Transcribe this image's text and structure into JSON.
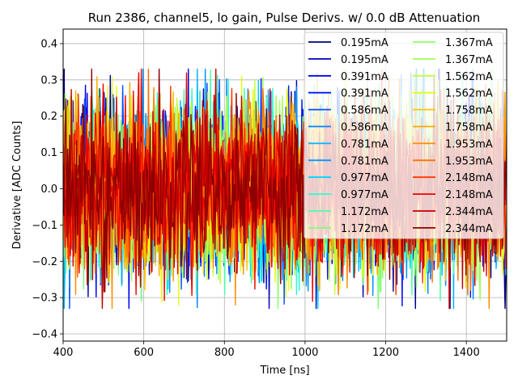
{
  "chart_data": {
    "type": "line",
    "title": "Run 2386, channel5, lo gain, Pulse Derivs. w/ 0.0 dB Attenuation",
    "xlabel": "Time [ns]",
    "ylabel": "Derivative [ADC Counts]",
    "xlim": [
      400,
      1500
    ],
    "ylim": [
      -0.42,
      0.44
    ],
    "xticks": [
      400,
      600,
      800,
      1000,
      1200,
      1400
    ],
    "xtick_labels": [
      "400",
      "600",
      "800",
      "1000",
      "1200",
      "1400"
    ],
    "yticks": [
      -0.4,
      -0.3,
      -0.2,
      -0.1,
      0.0,
      0.1,
      0.2,
      0.3,
      0.4
    ],
    "ytick_labels": [
      "−0.4",
      "−0.3",
      "−0.2",
      "−0.1",
      "0.0",
      "0.1",
      "0.2",
      "0.3",
      "0.4"
    ],
    "grid": true,
    "legend_position": "top-right",
    "legend_columns": 2,
    "noise_approximation": {
      "sample_step_ns": 2.2,
      "amplitude": 0.11,
      "max_abs": 0.33
    },
    "series": [
      {
        "name": "0.195mA",
        "color": "#00007f"
      },
      {
        "name": "0.195mA",
        "color": "#0000b2"
      },
      {
        "name": "0.391mA",
        "color": "#0000ed"
      },
      {
        "name": "0.391mA",
        "color": "#0014ff"
      },
      {
        "name": "0.586mA",
        "color": "#0050ff"
      },
      {
        "name": "0.586mA",
        "color": "#0084ff"
      },
      {
        "name": "0.781mA",
        "color": "#00b4ff"
      },
      {
        "name": "0.781mA",
        "color": "#0094ff"
      },
      {
        "name": "0.977mA",
        "color": "#00d4ff"
      },
      {
        "name": "0.977mA",
        "color": "#29ffce"
      },
      {
        "name": "1.172mA",
        "color": "#4dffaa"
      },
      {
        "name": "1.172mA",
        "color": "#7dff7a"
      },
      {
        "name": "1.367mA",
        "color": "#8dff6a"
      },
      {
        "name": "1.367mA",
        "color": "#a0ff56"
      },
      {
        "name": "1.562mA",
        "color": "#c1ff36"
      },
      {
        "name": "1.562mA",
        "color": "#e4ff13"
      },
      {
        "name": "1.758mA",
        "color": "#ffc400"
      },
      {
        "name": "1.758mA",
        "color": "#ffa800"
      },
      {
        "name": "1.953mA",
        "color": "#ff8d00"
      },
      {
        "name": "1.953mA",
        "color": "#ff7000"
      },
      {
        "name": "2.148mA",
        "color": "#ff3800"
      },
      {
        "name": "2.148mA",
        "color": "#ed0400"
      },
      {
        "name": "2.344mA",
        "color": "#c10000"
      },
      {
        "name": "2.344mA",
        "color": "#8d0000"
      }
    ]
  }
}
